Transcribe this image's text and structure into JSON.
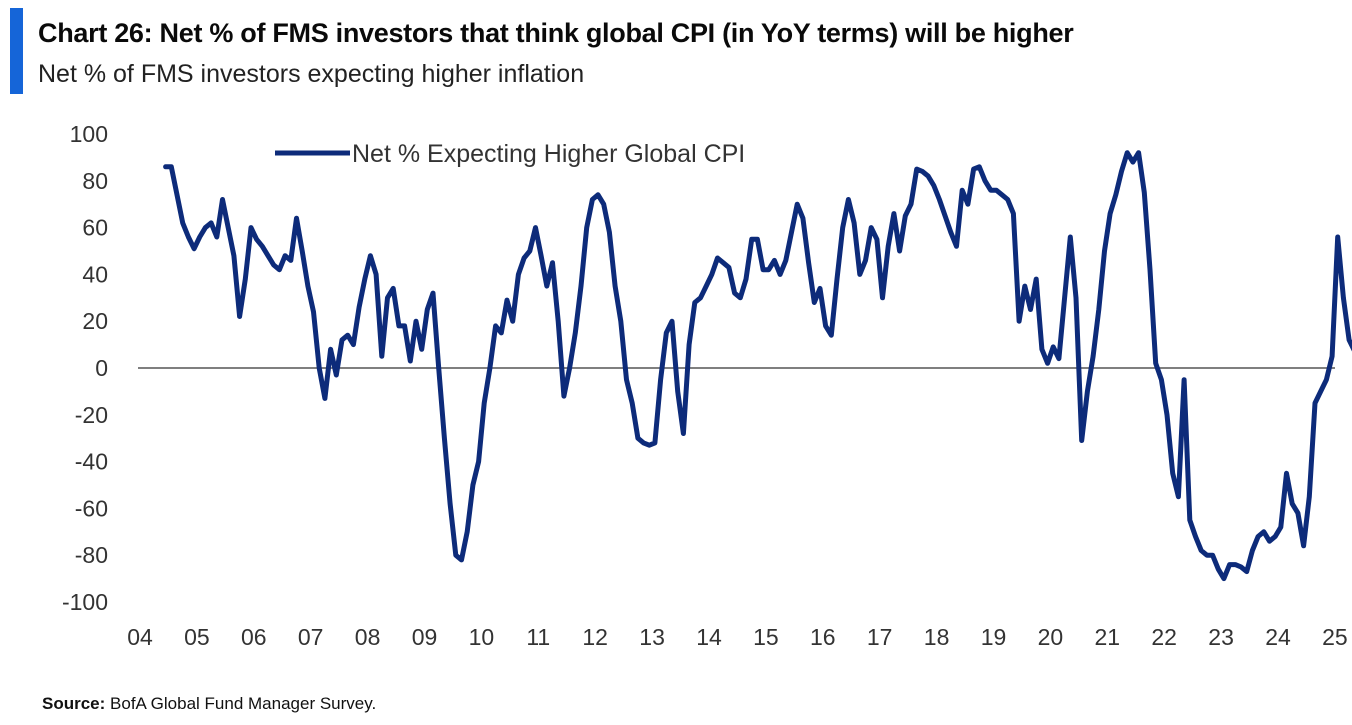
{
  "header": {
    "title": "Chart 26: Net % of FMS investors that think global CPI (in YoY terms) will be higher",
    "subtitle": "Net % of FMS investors expecting higher inflation"
  },
  "footer": {
    "source_label": "Source:",
    "source_text": "BofA Global Fund Manager Survey."
  },
  "colors": {
    "accent": "#1565d8",
    "series": "#0d2b7a",
    "zero_line": "#555555"
  },
  "chart_data": {
    "type": "line",
    "title": "",
    "xlabel": "",
    "ylabel": "",
    "ylim": [
      -100,
      100
    ],
    "yticks": [
      100,
      80,
      60,
      40,
      20,
      0,
      -20,
      -40,
      -60,
      -80,
      -100
    ],
    "xticks": [
      "04",
      "05",
      "06",
      "07",
      "08",
      "09",
      "10",
      "11",
      "12",
      "13",
      "14",
      "15",
      "16",
      "17",
      "18",
      "19",
      "20",
      "21",
      "22",
      "23",
      "24",
      "25"
    ],
    "xlim": [
      2004,
      2025.9
    ],
    "grid": false,
    "legend": "top-left",
    "series": [
      {
        "name": "Net % Expecting Higher Global CPI",
        "points": [
          [
            2004.45,
            86
          ],
          [
            2004.55,
            86
          ],
          [
            2004.65,
            74
          ],
          [
            2004.75,
            62
          ],
          [
            2004.85,
            56
          ],
          [
            2004.95,
            51
          ],
          [
            2005.05,
            56
          ],
          [
            2005.15,
            60
          ],
          [
            2005.25,
            62
          ],
          [
            2005.35,
            56
          ],
          [
            2005.45,
            72
          ],
          [
            2005.55,
            60
          ],
          [
            2005.65,
            48
          ],
          [
            2005.75,
            22
          ],
          [
            2005.85,
            38
          ],
          [
            2005.95,
            60
          ],
          [
            2006.05,
            55
          ],
          [
            2006.15,
            52
          ],
          [
            2006.25,
            48
          ],
          [
            2006.35,
            44
          ],
          [
            2006.45,
            42
          ],
          [
            2006.55,
            48
          ],
          [
            2006.65,
            46
          ],
          [
            2006.75,
            64
          ],
          [
            2006.85,
            50
          ],
          [
            2006.95,
            35
          ],
          [
            2007.05,
            24
          ],
          [
            2007.15,
            0
          ],
          [
            2007.25,
            -13
          ],
          [
            2007.35,
            8
          ],
          [
            2007.45,
            -3
          ],
          [
            2007.55,
            12
          ],
          [
            2007.65,
            14
          ],
          [
            2007.75,
            10
          ],
          [
            2007.85,
            26
          ],
          [
            2007.95,
            38
          ],
          [
            2008.05,
            48
          ],
          [
            2008.15,
            40
          ],
          [
            2008.25,
            5
          ],
          [
            2008.35,
            30
          ],
          [
            2008.45,
            34
          ],
          [
            2008.55,
            18
          ],
          [
            2008.65,
            18
          ],
          [
            2008.75,
            3
          ],
          [
            2008.85,
            20
          ],
          [
            2008.95,
            8
          ],
          [
            2009.05,
            25
          ],
          [
            2009.15,
            32
          ],
          [
            2009.25,
            0
          ],
          [
            2009.35,
            -30
          ],
          [
            2009.45,
            -58
          ],
          [
            2009.55,
            -80
          ],
          [
            2009.65,
            -82
          ],
          [
            2009.75,
            -70
          ],
          [
            2009.85,
            -50
          ],
          [
            2009.95,
            -40
          ],
          [
            2010.05,
            -15
          ],
          [
            2010.15,
            0
          ],
          [
            2010.25,
            18
          ],
          [
            2010.35,
            15
          ],
          [
            2010.45,
            29
          ],
          [
            2010.55,
            20
          ],
          [
            2010.65,
            40
          ],
          [
            2010.75,
            47
          ],
          [
            2010.85,
            50
          ],
          [
            2010.95,
            60
          ],
          [
            2011.05,
            48
          ],
          [
            2011.15,
            35
          ],
          [
            2011.25,
            45
          ],
          [
            2011.35,
            20
          ],
          [
            2011.45,
            -12
          ],
          [
            2011.55,
            0
          ],
          [
            2011.65,
            15
          ],
          [
            2011.75,
            35
          ],
          [
            2011.85,
            60
          ],
          [
            2011.95,
            72
          ],
          [
            2012.05,
            74
          ],
          [
            2012.15,
            70
          ],
          [
            2012.25,
            58
          ],
          [
            2012.35,
            35
          ],
          [
            2012.45,
            20
          ],
          [
            2012.55,
            -5
          ],
          [
            2012.65,
            -15
          ],
          [
            2012.75,
            -30
          ],
          [
            2012.85,
            -32
          ],
          [
            2012.95,
            -33
          ],
          [
            2013.05,
            -32
          ],
          [
            2013.15,
            -5
          ],
          [
            2013.25,
            15
          ],
          [
            2013.35,
            20
          ],
          [
            2013.45,
            -10
          ],
          [
            2013.55,
            -28
          ],
          [
            2013.65,
            10
          ],
          [
            2013.75,
            28
          ],
          [
            2013.85,
            30
          ],
          [
            2013.95,
            35
          ],
          [
            2014.05,
            40
          ],
          [
            2014.15,
            47
          ],
          [
            2014.25,
            45
          ],
          [
            2014.35,
            43
          ],
          [
            2014.45,
            32
          ],
          [
            2014.55,
            30
          ],
          [
            2014.65,
            38
          ],
          [
            2014.75,
            55
          ],
          [
            2014.85,
            55
          ],
          [
            2014.95,
            42
          ],
          [
            2015.05,
            42
          ],
          [
            2015.15,
            46
          ],
          [
            2015.25,
            40
          ],
          [
            2015.35,
            46
          ],
          [
            2015.45,
            58
          ],
          [
            2015.55,
            70
          ],
          [
            2015.65,
            64
          ],
          [
            2015.75,
            45
          ],
          [
            2015.85,
            28
          ],
          [
            2015.95,
            34
          ],
          [
            2016.05,
            18
          ],
          [
            2016.15,
            14
          ],
          [
            2016.25,
            38
          ],
          [
            2016.35,
            60
          ],
          [
            2016.45,
            72
          ],
          [
            2016.55,
            62
          ],
          [
            2016.65,
            40
          ],
          [
            2016.75,
            46
          ],
          [
            2016.85,
            60
          ],
          [
            2016.95,
            55
          ],
          [
            2017.05,
            30
          ],
          [
            2017.15,
            52
          ],
          [
            2017.25,
            66
          ],
          [
            2017.35,
            50
          ],
          [
            2017.45,
            65
          ],
          [
            2017.55,
            70
          ],
          [
            2017.65,
            85
          ],
          [
            2017.75,
            84
          ],
          [
            2017.85,
            82
          ],
          [
            2017.95,
            78
          ],
          [
            2018.05,
            72
          ],
          [
            2018.15,
            65
          ],
          [
            2018.25,
            58
          ],
          [
            2018.35,
            52
          ],
          [
            2018.45,
            76
          ],
          [
            2018.55,
            70
          ],
          [
            2018.65,
            85
          ],
          [
            2018.75,
            86
          ],
          [
            2018.85,
            80
          ],
          [
            2018.95,
            76
          ],
          [
            2019.05,
            76
          ],
          [
            2019.15,
            74
          ],
          [
            2019.25,
            72
          ],
          [
            2019.35,
            66
          ],
          [
            2019.45,
            20
          ],
          [
            2019.55,
            35
          ],
          [
            2019.65,
            25
          ],
          [
            2019.75,
            38
          ],
          [
            2019.85,
            8
          ],
          [
            2019.95,
            2
          ],
          [
            2020.05,
            9
          ],
          [
            2020.15,
            4
          ],
          [
            2020.25,
            30
          ],
          [
            2020.35,
            56
          ],
          [
            2020.45,
            30
          ],
          [
            2020.55,
            -31
          ],
          [
            2020.65,
            -10
          ],
          [
            2020.75,
            5
          ],
          [
            2020.85,
            25
          ],
          [
            2020.95,
            50
          ],
          [
            2021.05,
            66
          ],
          [
            2021.15,
            74
          ],
          [
            2021.25,
            84
          ],
          [
            2021.35,
            92
          ],
          [
            2021.45,
            88
          ],
          [
            2021.55,
            92
          ],
          [
            2021.65,
            75
          ],
          [
            2021.75,
            42
          ],
          [
            2021.85,
            2
          ],
          [
            2021.95,
            -5
          ],
          [
            2022.05,
            -20
          ],
          [
            2022.15,
            -45
          ],
          [
            2022.25,
            -55
          ],
          [
            2022.35,
            -5
          ],
          [
            2022.45,
            -65
          ],
          [
            2022.55,
            -72
          ],
          [
            2022.65,
            -78
          ],
          [
            2022.75,
            -80
          ],
          [
            2022.85,
            -80
          ],
          [
            2022.95,
            -86
          ],
          [
            2023.05,
            -90
          ],
          [
            2023.15,
            -84
          ],
          [
            2023.25,
            -84
          ],
          [
            2023.35,
            -85
          ],
          [
            2023.45,
            -87
          ],
          [
            2023.55,
            -78
          ],
          [
            2023.65,
            -72
          ],
          [
            2023.75,
            -70
          ],
          [
            2023.85,
            -74
          ],
          [
            2023.95,
            -72
          ],
          [
            2024.05,
            -68
          ],
          [
            2024.15,
            -45
          ],
          [
            2024.25,
            -58
          ],
          [
            2024.35,
            -62
          ],
          [
            2024.45,
            -76
          ],
          [
            2024.55,
            -55
          ],
          [
            2024.65,
            -15
          ],
          [
            2024.75,
            -10
          ],
          [
            2024.85,
            -5
          ],
          [
            2024.95,
            5
          ],
          [
            2025.05,
            56
          ],
          [
            2025.15,
            30
          ],
          [
            2025.25,
            12
          ],
          [
            2025.35,
            7
          ]
        ]
      }
    ]
  }
}
